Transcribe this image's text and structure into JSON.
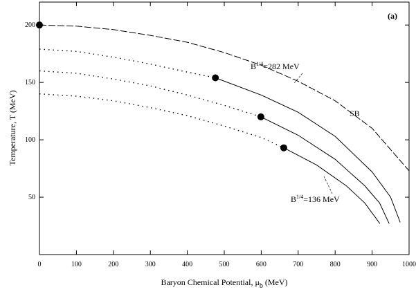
{
  "chart_data": {
    "type": "line",
    "panel_label": "(a)",
    "x_label": {
      "text": "Baryon Chemical Potential, μ",
      "sub": "b",
      "unit": " (MeV)"
    },
    "y_label": "Temperature, T (MeV)",
    "xlim": [
      0,
      1000
    ],
    "ylim": [
      0,
      220
    ],
    "xticks": [
      0,
      100,
      200,
      300,
      400,
      500,
      600,
      700,
      800,
      900,
      1000
    ],
    "yticks": [
      50,
      100,
      150,
      200
    ],
    "color": "#000000",
    "series": [
      {
        "style": "dashed",
        "x": [
          0,
          100,
          200,
          300,
          400,
          500,
          600,
          700,
          800,
          900,
          1000
        ],
        "values": [
          200,
          199,
          196,
          191,
          185,
          176,
          165,
          151,
          134,
          110,
          73
        ]
      },
      {
        "style": "dotted",
        "x": [
          0,
          100,
          200,
          300,
          400,
          476
        ],
        "values": [
          179,
          177,
          172,
          166,
          159,
          154
        ]
      },
      {
        "style": "solid",
        "x": [
          476,
          600,
          700,
          800,
          900,
          950,
          976
        ],
        "values": [
          154,
          139,
          124,
          103,
          72,
          50,
          28
        ]
      },
      {
        "style": "dotted",
        "x": [
          0,
          100,
          200,
          300,
          400,
          500,
          599
        ],
        "values": [
          160,
          158,
          153,
          147,
          139,
          130,
          120
        ]
      },
      {
        "style": "solid",
        "x": [
          599,
          700,
          800,
          880,
          920,
          946
        ],
        "values": [
          120,
          104,
          83,
          60,
          45,
          27
        ]
      },
      {
        "style": "dotted",
        "x": [
          0,
          100,
          200,
          300,
          400,
          500,
          600,
          661
        ],
        "values": [
          140,
          138,
          134,
          128,
          121,
          112,
          102,
          93
        ]
      },
      {
        "style": "solid",
        "x": [
          661,
          750,
          830,
          880,
          921
        ],
        "values": [
          93,
          78,
          60,
          45,
          27
        ]
      },
      {
        "style": "marker",
        "x": [
          0,
          476,
          599,
          661
        ],
        "values": [
          200,
          154,
          120,
          93
        ]
      }
    ],
    "annotations": [
      {
        "base": "B",
        "sup": "1/4",
        "text": "=282 MeV"
      },
      {
        "base": "SB"
      },
      {
        "base": "B",
        "sup": "1/4",
        "text": "=136 MeV"
      }
    ]
  }
}
